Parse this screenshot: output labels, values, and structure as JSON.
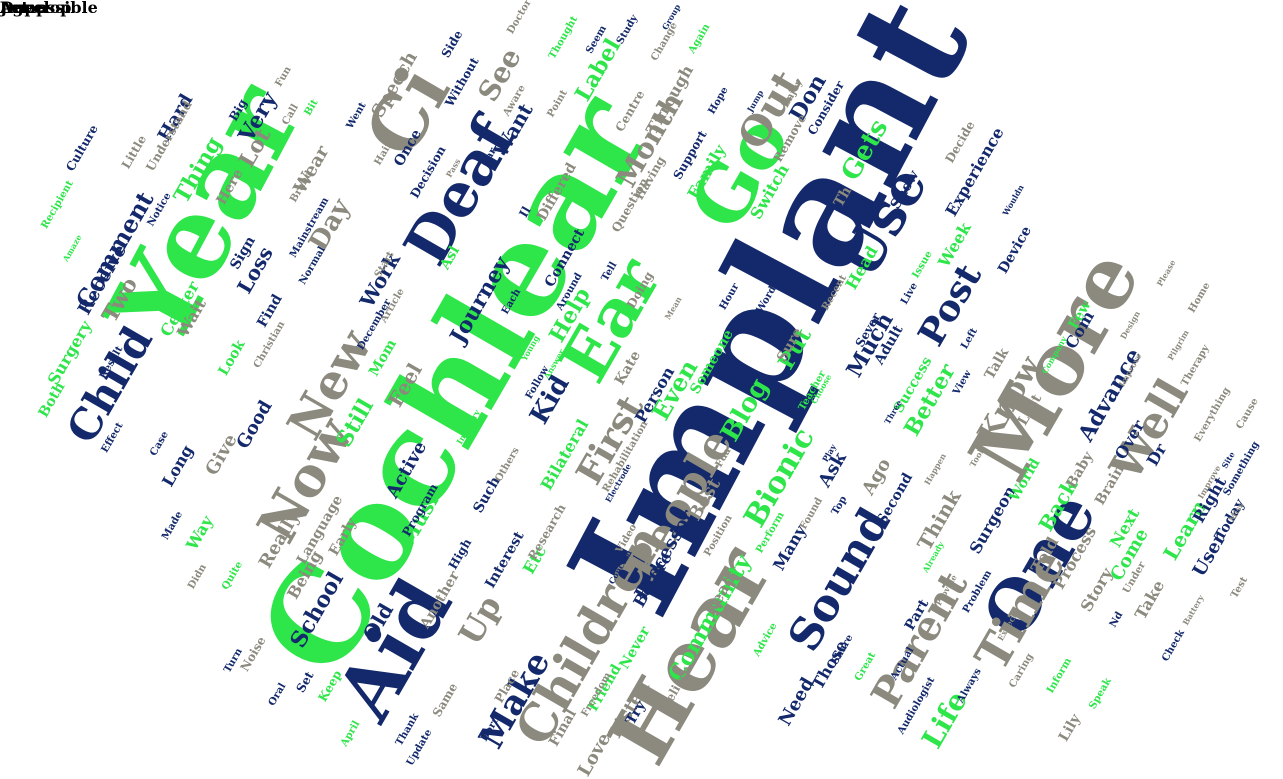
{
  "colors": {
    "navy": "#13296b",
    "green": "#2ee54a",
    "gray": "#8c8a7e",
    "background": "#ffffff"
  },
  "words": [
    {
      "text": "Implant",
      "color": "navy"
    },
    {
      "text": "Cochlear",
      "color": "green"
    },
    {
      "text": "Year",
      "color": "green"
    },
    {
      "text": "Hear",
      "color": "gray"
    },
    {
      "text": "Aid",
      "color": "navy"
    },
    {
      "text": "More",
      "color": "gray"
    },
    {
      "text": "Go",
      "color": "green"
    },
    {
      "text": "Ci",
      "color": "gray"
    },
    {
      "text": "Deaf",
      "color": "navy"
    },
    {
      "text": "One",
      "color": "navy"
    },
    {
      "text": "Ear",
      "color": "green"
    },
    {
      "text": "Children",
      "color": "gray"
    },
    {
      "text": "Use",
      "color": "navy"
    },
    {
      "text": "Now",
      "color": "gray"
    },
    {
      "text": "Time",
      "color": "gray"
    },
    {
      "text": "Sound",
      "color": "navy"
    },
    {
      "text": "Child",
      "color": "navy"
    },
    {
      "text": "New",
      "color": "gray"
    },
    {
      "text": "People",
      "color": "gray"
    },
    {
      "text": "Well",
      "color": "gray"
    },
    {
      "text": "Post",
      "color": "navy"
    },
    {
      "text": "Parent",
      "color": "gray"
    },
    {
      "text": "Up",
      "color": "gray"
    },
    {
      "text": "Make",
      "color": "navy"
    },
    {
      "text": "First",
      "color": "gray"
    },
    {
      "text": "Out",
      "color": "gray"
    },
    {
      "text": "Month",
      "color": "gray"
    },
    {
      "text": "Know",
      "color": "gray"
    },
    {
      "text": "Bionic",
      "color": "green"
    },
    {
      "text": "Blog",
      "color": "green"
    },
    {
      "text": "Life",
      "color": "green"
    },
    {
      "text": "Comment",
      "color": "navy"
    },
    {
      "text": "See",
      "color": "gray"
    },
    {
      "text": "Gets",
      "color": "green"
    },
    {
      "text": "Still",
      "color": "green"
    },
    {
      "text": "Journey",
      "color": "navy"
    },
    {
      "text": "Kid",
      "color": "navy"
    },
    {
      "text": "Help",
      "color": "green"
    },
    {
      "text": "Don",
      "color": "navy"
    },
    {
      "text": "Very",
      "color": "navy"
    },
    {
      "text": "Label",
      "color": "green"
    },
    {
      "text": "Community",
      "color": "green"
    },
    {
      "text": "Advance",
      "color": "navy"
    },
    {
      "text": "Better",
      "color": "green"
    },
    {
      "text": "Even",
      "color": "green"
    },
    {
      "text": "Put",
      "color": "green"
    },
    {
      "text": "Much",
      "color": "navy"
    },
    {
      "text": "Learn",
      "color": "green"
    },
    {
      "text": "Back",
      "color": "green"
    },
    {
      "text": "Day",
      "color": "gray"
    },
    {
      "text": "Work",
      "color": "navy"
    },
    {
      "text": "Thing",
      "color": "green"
    },
    {
      "text": "Lot",
      "color": "gray"
    },
    {
      "text": "Want",
      "color": "navy"
    },
    {
      "text": "School",
      "color": "navy"
    },
    {
      "text": "Music",
      "color": "green"
    },
    {
      "text": "Listen",
      "color": "gray"
    },
    {
      "text": "Love",
      "color": "gray"
    },
    {
      "text": "Think",
      "color": "gray"
    },
    {
      "text": "Ago",
      "color": "gray"
    },
    {
      "text": "Feel",
      "color": "gray"
    },
    {
      "text": "Old",
      "color": "navy"
    },
    {
      "text": "Two",
      "color": "gray"
    },
    {
      "text": "Loss",
      "color": "navy"
    },
    {
      "text": "Give",
      "color": "gray"
    },
    {
      "text": "Good",
      "color": "navy"
    },
    {
      "text": "Receive",
      "color": "navy"
    },
    {
      "text": "Hard",
      "color": "navy"
    },
    {
      "text": "Speech",
      "color": "gray"
    },
    {
      "text": "Being",
      "color": "gray"
    },
    {
      "text": "Really",
      "color": "gray"
    },
    {
      "text": "Language",
      "color": "gray"
    },
    {
      "text": "Early",
      "color": "gray"
    },
    {
      "text": "Processor",
      "color": "navy"
    },
    {
      "text": "Read",
      "color": "gray"
    },
    {
      "text": "Best",
      "color": "gray"
    },
    {
      "text": "Person",
      "color": "navy"
    },
    {
      "text": "Bilateral",
      "color": "green"
    },
    {
      "text": "Active",
      "color": "navy"
    },
    {
      "text": "Ask",
      "color": "navy"
    },
    {
      "text": "Surgeon",
      "color": "navy"
    },
    {
      "text": "Process",
      "color": "gray"
    },
    {
      "text": "Com",
      "color": "navy"
    },
    {
      "text": "Dr",
      "color": "navy"
    },
    {
      "text": "Right",
      "color": "navy"
    },
    {
      "text": "Over",
      "color": "navy"
    },
    {
      "text": "Story",
      "color": "gray"
    },
    {
      "text": "Come",
      "color": "green"
    },
    {
      "text": "Told",
      "color": "gray"
    },
    {
      "text": "Take",
      "color": "gray"
    },
    {
      "text": "User",
      "color": "navy"
    },
    {
      "text": "Next",
      "color": "green"
    },
    {
      "text": "Experience",
      "color": "navy"
    },
    {
      "text": "Week",
      "color": "green"
    },
    {
      "text": "Head",
      "color": "green"
    },
    {
      "text": "Sure",
      "color": "gray"
    },
    {
      "text": "Someone",
      "color": "green"
    },
    {
      "text": "Kate",
      "color": "gray"
    },
    {
      "text": "Asl",
      "color": "green"
    },
    {
      "text": "Differed",
      "color": "gray"
    },
    {
      "text": "Connect",
      "color": "navy"
    },
    {
      "text": "Switch",
      "color": "green"
    },
    {
      "text": "Family",
      "color": "green"
    },
    {
      "text": "Through",
      "color": "gray"
    },
    {
      "text": "Wear",
      "color": "gray"
    },
    {
      "text": "Surgery",
      "color": "green"
    },
    {
      "text": "Center",
      "color": "green"
    },
    {
      "text": "Both",
      "color": "green"
    },
    {
      "text": "Wait",
      "color": "gray"
    },
    {
      "text": "Way",
      "color": "green"
    },
    {
      "text": "Long",
      "color": "navy"
    },
    {
      "text": "Mom",
      "color": "green"
    },
    {
      "text": "Need",
      "color": "navy"
    },
    {
      "text": "Those",
      "color": "navy"
    },
    {
      "text": "Many",
      "color": "navy"
    },
    {
      "text": "Friend",
      "color": "green"
    },
    {
      "text": "Never",
      "color": "green"
    },
    {
      "text": "Before",
      "color": "navy"
    },
    {
      "text": "Etc",
      "color": "green"
    },
    {
      "text": "Interest",
      "color": "navy"
    },
    {
      "text": "Such",
      "color": "navy"
    },
    {
      "text": "Another",
      "color": "gray"
    },
    {
      "text": "Try",
      "color": "navy"
    },
    {
      "text": "Final",
      "color": "gray"
    },
    {
      "text": "Lily",
      "color": "gray"
    },
    {
      "text": "Part",
      "color": "navy"
    },
    {
      "text": "Baby",
      "color": "gray"
    },
    {
      "text": "Last",
      "color": "gray"
    },
    {
      "text": "Talk",
      "color": "gray"
    },
    {
      "text": "Few",
      "color": "green"
    },
    {
      "text": "Brain",
      "color": "gray"
    },
    {
      "text": "World",
      "color": "green"
    },
    {
      "text": "Today",
      "color": "navy"
    },
    {
      "text": "Second",
      "color": "navy"
    },
    {
      "text": "Device",
      "color": "navy"
    },
    {
      "text": "Success",
      "color": "green"
    },
    {
      "text": "Adult",
      "color": "navy"
    },
    {
      "text": "Sever",
      "color": "navy"
    },
    {
      "text": "Show",
      "color": "navy"
    },
    {
      "text": "Consider",
      "color": "navy"
    },
    {
      "text": "Decide",
      "color": "gray"
    },
    {
      "text": "Remove",
      "color": "gray"
    },
    {
      "text": "Support",
      "color": "navy"
    },
    {
      "text": "Question",
      "color": "gray"
    },
    {
      "text": "Centre",
      "color": "gray"
    },
    {
      "text": "Doing",
      "color": "gray"
    },
    {
      "text": "Having",
      "color": "gray"
    },
    {
      "text": "Th",
      "color": "gray"
    },
    {
      "text": "Il",
      "color": "navy"
    },
    {
      "text": "Decision",
      "color": "navy"
    },
    {
      "text": "Once",
      "color": "navy"
    },
    {
      "text": "Here",
      "color": "gray"
    },
    {
      "text": "Big",
      "color": "navy"
    },
    {
      "text": "Sign",
      "color": "navy"
    },
    {
      "text": "Look",
      "color": "green"
    },
    {
      "text": "Find",
      "color": "navy"
    },
    {
      "text": "Start",
      "color": "gray"
    },
    {
      "text": "Keep",
      "color": "green"
    },
    {
      "text": "Set",
      "color": "navy"
    },
    {
      "text": "Noise",
      "color": "gray"
    },
    {
      "text": "Same",
      "color": "gray"
    },
    {
      "text": "Place",
      "color": "gray"
    },
    {
      "text": "Relieve",
      "color": "gray"
    },
    {
      "text": "Research",
      "color": "gray"
    },
    {
      "text": "High",
      "color": "navy"
    },
    {
      "text": "Program",
      "color": "navy"
    },
    {
      "text": "Culture",
      "color": "navy"
    },
    {
      "text": "Little",
      "color": "gray"
    },
    {
      "text": "Understand",
      "color": "gray"
    },
    {
      "text": "Side",
      "color": "navy"
    },
    {
      "text": "Without",
      "color": "navy"
    },
    {
      "text": "Went",
      "color": "navy"
    },
    {
      "text": "Aware",
      "color": "gray"
    },
    {
      "text": "Call",
      "color": "gray"
    },
    {
      "text": "Fun",
      "color": "gray"
    },
    {
      "text": "Bit",
      "color": "green"
    },
    {
      "text": "Doctor",
      "color": "gray"
    },
    {
      "text": "Thought",
      "color": "green"
    },
    {
      "text": "Seem",
      "color": "navy"
    },
    {
      "text": "Point",
      "color": "gray"
    },
    {
      "text": "Study",
      "color": "navy"
    },
    {
      "text": "Change",
      "color": "gray"
    },
    {
      "text": "Again",
      "color": "green"
    },
    {
      "text": "Group",
      "color": "navy"
    },
    {
      "text": "Enjoy",
      "color": "gray"
    },
    {
      "text": "Hope",
      "color": "navy"
    },
    {
      "text": "Jump",
      "color": "navy"
    },
    {
      "text": "Far",
      "color": "navy"
    },
    {
      "text": "Pass",
      "color": "gray"
    },
    {
      "text": "Hair",
      "color": "gray"
    },
    {
      "text": "Brand",
      "color": "gray"
    },
    {
      "text": "Mainstream",
      "color": "navy"
    },
    {
      "text": "Normal",
      "color": "navy"
    },
    {
      "text": "Notice",
      "color": "navy"
    },
    {
      "text": "Recipient",
      "color": "green"
    },
    {
      "text": "Amaze",
      "color": "green"
    },
    {
      "text": "Effect",
      "color": "navy"
    },
    {
      "text": "Result",
      "color": "navy"
    },
    {
      "text": "Made",
      "color": "navy"
    },
    {
      "text": "Didn",
      "color": "gray"
    },
    {
      "text": "Quite",
      "color": "green"
    },
    {
      "text": "Turn",
      "color": "navy"
    },
    {
      "text": "Oral",
      "color": "navy"
    },
    {
      "text": "April",
      "color": "green"
    },
    {
      "text": "Thank",
      "color": "navy"
    },
    {
      "text": "Update",
      "color": "navy"
    },
    {
      "text": "Born",
      "color": "navy"
    },
    {
      "text": "Freedom",
      "color": "gray"
    },
    {
      "text": "Advice",
      "color": "green"
    },
    {
      "text": "Share",
      "color": "navy"
    },
    {
      "text": "Great",
      "color": "green"
    },
    {
      "text": "Actual",
      "color": "navy"
    },
    {
      "text": "Audiologist",
      "color": "navy"
    },
    {
      "text": "Always",
      "color": "navy"
    },
    {
      "text": "Caring",
      "color": "gray"
    },
    {
      "text": "Inform",
      "color": "green"
    },
    {
      "text": "Speak",
      "color": "green"
    },
    {
      "text": "Nd",
      "color": "navy"
    },
    {
      "text": "Check",
      "color": "navy"
    },
    {
      "text": "Test",
      "color": "gray"
    },
    {
      "text": "Under",
      "color": "gray"
    },
    {
      "text": "Everything",
      "color": "gray"
    },
    {
      "text": "Something",
      "color": "navy"
    },
    {
      "text": "Cause",
      "color": "gray"
    },
    {
      "text": "Therapy",
      "color": "gray"
    },
    {
      "text": "Home",
      "color": "gray"
    },
    {
      "text": "Left",
      "color": "navy"
    },
    {
      "text": "View",
      "color": "navy"
    },
    {
      "text": "Issue",
      "color": "green"
    },
    {
      "text": "Live",
      "color": "navy"
    },
    {
      "text": "Recent",
      "color": "gray"
    },
    {
      "text": "Word",
      "color": "navy"
    },
    {
      "text": "Hour",
      "color": "navy"
    },
    {
      "text": "Mean",
      "color": "gray"
    },
    {
      "text": "Tell",
      "color": "navy"
    },
    {
      "text": "Around",
      "color": "navy"
    },
    {
      "text": "Each",
      "color": "navy"
    },
    {
      "text": "Young",
      "color": "green"
    },
    {
      "text": "Answer",
      "color": "green"
    },
    {
      "text": "Follow",
      "color": "navy"
    },
    {
      "text": "Others",
      "color": "gray"
    },
    {
      "text": "Industry",
      "color": "green"
    },
    {
      "text": "Article",
      "color": "gray"
    },
    {
      "text": "December",
      "color": "navy"
    },
    {
      "text": "Christian",
      "color": "gray"
    },
    {
      "text": "Case",
      "color": "navy"
    },
    {
      "text": "Video",
      "color": "gray"
    },
    {
      "text": "Concern",
      "color": "navy"
    },
    {
      "text": "Electrode",
      "color": "navy"
    },
    {
      "text": "Rehabilitation",
      "color": "gray"
    },
    {
      "text": "Position",
      "color": "gray"
    },
    {
      "text": "Perform",
      "color": "green"
    },
    {
      "text": "Fda",
      "color": "gray"
    },
    {
      "text": "Found",
      "color": "gray"
    },
    {
      "text": "Top",
      "color": "navy"
    },
    {
      "text": "Teacher",
      "color": "green"
    },
    {
      "text": "Play",
      "color": "navy"
    },
    {
      "text": "Choose",
      "color": "green"
    },
    {
      "text": "Three",
      "color": "navy"
    },
    {
      "text": "Happen",
      "color": "gray"
    },
    {
      "text": "Took",
      "color": "gray"
    },
    {
      "text": "Already",
      "color": "green"
    },
    {
      "text": "Provide",
      "color": "gray"
    },
    {
      "text": "Problem",
      "color": "navy"
    },
    {
      "text": "Expect",
      "color": "gray"
    },
    {
      "text": "Battery",
      "color": "gray"
    },
    {
      "text": "Wouldn",
      "color": "navy"
    },
    {
      "text": "Company",
      "color": "green"
    },
    {
      "text": "Design",
      "color": "gray"
    },
    {
      "text": "Pilgrim",
      "color": "gray"
    },
    {
      "text": "Please",
      "color": "gray"
    },
    {
      "text": "Improve",
      "color": "gray"
    },
    {
      "text": "Site",
      "color": "navy"
    },
    {
      "text": "Miss",
      "color": "gray"
    },
    {
      "text": "Improve",
      "color": "gray"
    },
    {
      "text": "Let",
      "color": "gray"
    },
    {
      "text": "Age",
      "color": "gray"
    },
    {
      "text": "Jump",
      "color": "navy"
    },
    {
      "text": "Develop",
      "color": "gray"
    },
    {
      "text": "Impossible",
      "color": "gray"
    }
  ]
}
